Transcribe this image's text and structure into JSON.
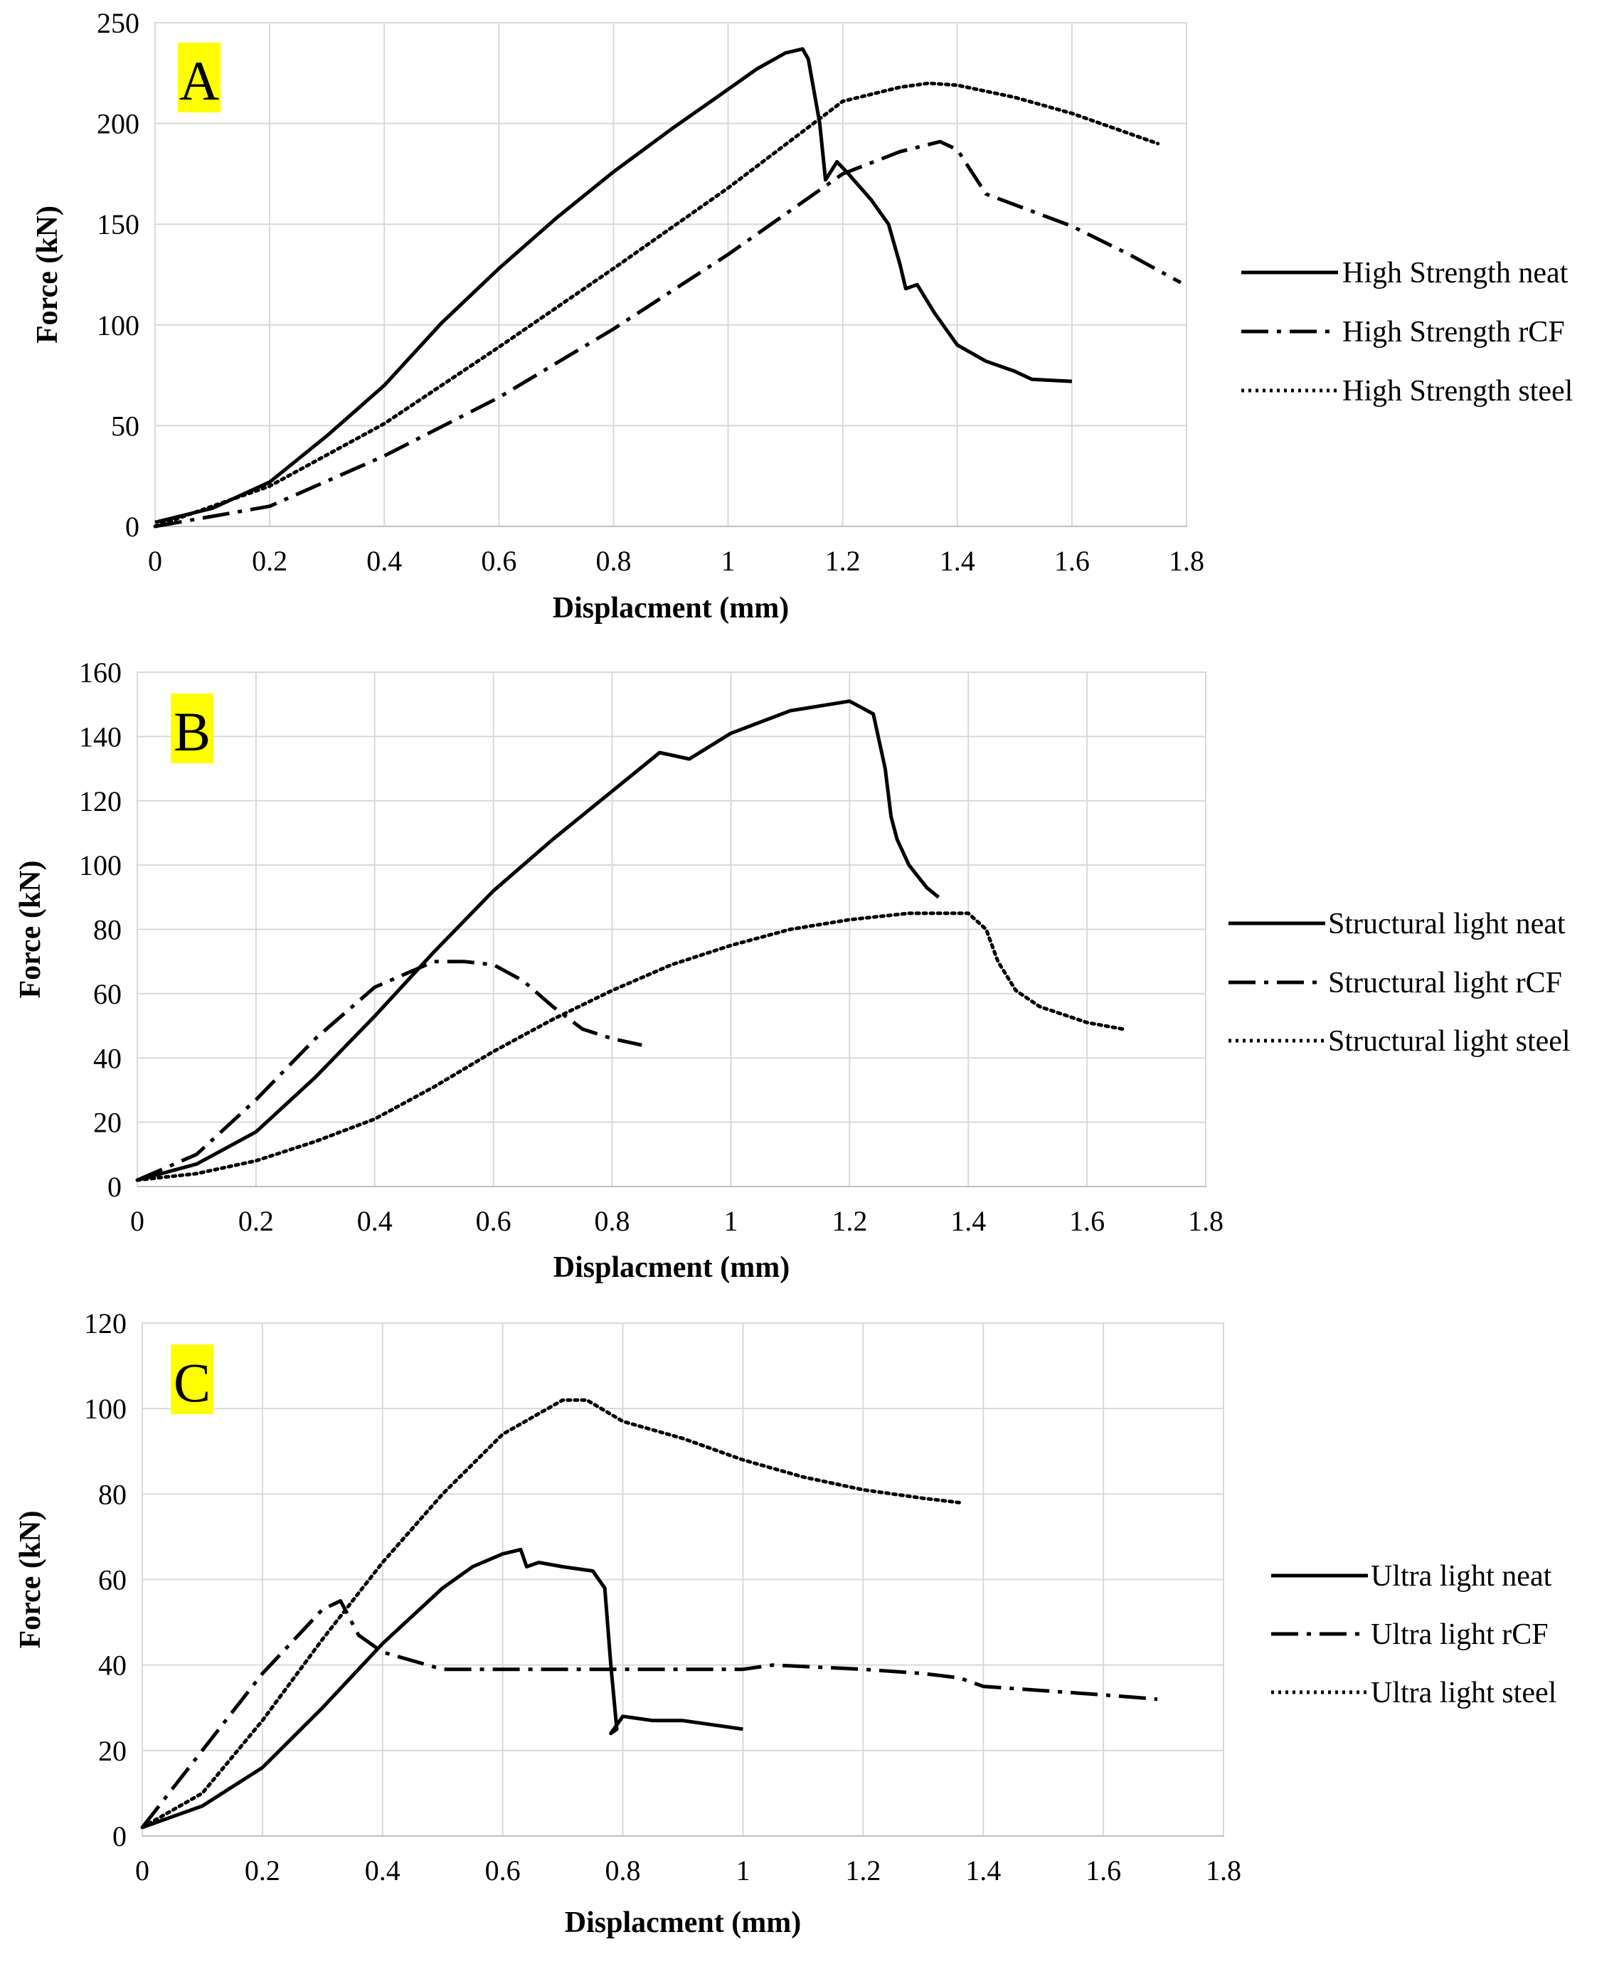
{
  "chart_data": [
    {
      "type": "line",
      "panel_label": "A",
      "panel_label_color": "#ffff00",
      "xlabel": "Displacment (mm)",
      "ylabel": "Force (kN)",
      "xlim": [
        0,
        1.8
      ],
      "ylim": [
        0,
        250
      ],
      "xticks": [
        "0",
        "0.2",
        "0.4",
        "0.6",
        "0.8",
        "1",
        "1.2",
        "1.4",
        "1.6",
        "1.8"
      ],
      "yticks": [
        "0",
        "50",
        "100",
        "150",
        "200",
        "250"
      ],
      "grid": true,
      "legend_position": "right",
      "series": [
        {
          "name": "High Strength neat",
          "style": "solid",
          "x": [
            0,
            0.1,
            0.2,
            0.3,
            0.4,
            0.5,
            0.6,
            0.7,
            0.8,
            0.9,
            1.0,
            1.05,
            1.1,
            1.13,
            1.14,
            1.16,
            1.17,
            1.19,
            1.21,
            1.25,
            1.28,
            1.3,
            1.31,
            1.33,
            1.36,
            1.4,
            1.45,
            1.5,
            1.53,
            1.6
          ],
          "y": [
            2,
            9,
            22,
            45,
            70,
            101,
            128,
            153,
            176,
            197,
            217,
            227,
            235,
            237,
            232,
            200,
            172,
            181,
            175,
            162,
            150,
            130,
            118,
            120,
            106,
            90,
            82,
            77,
            73,
            72
          ]
        },
        {
          "name": "High Strength rCF",
          "style": "dashdot",
          "x": [
            0,
            0.2,
            0.4,
            0.6,
            0.8,
            1.0,
            1.2,
            1.3,
            1.37,
            1.4,
            1.45,
            1.6,
            1.7,
            1.79
          ],
          "y": [
            0,
            10,
            35,
            64,
            98,
            135,
            175,
            186,
            191,
            187,
            165,
            149,
            135,
            121
          ]
        },
        {
          "name": "High Strength steel",
          "style": "dotted",
          "x": [
            0,
            0.2,
            0.4,
            0.6,
            0.8,
            1.0,
            1.2,
            1.3,
            1.35,
            1.4,
            1.5,
            1.6,
            1.75
          ],
          "y": [
            0,
            20,
            51,
            89,
            128,
            168,
            211,
            218,
            220,
            219,
            213,
            205,
            190
          ]
        }
      ]
    },
    {
      "type": "line",
      "panel_label": "B",
      "panel_label_color": "#ffff00",
      "xlabel": "Displacment (mm)",
      "ylabel": "Force (kN)",
      "xlim": [
        0,
        1.8
      ],
      "ylim": [
        0,
        160
      ],
      "xticks": [
        "0",
        "0.2",
        "0.4",
        "0.6",
        "0.8",
        "1",
        "1.2",
        "1.4",
        "1.6",
        "1.8"
      ],
      "yticks": [
        "0",
        "20",
        "40",
        "60",
        "80",
        "100",
        "120",
        "140",
        "160"
      ],
      "grid": true,
      "legend_position": "right",
      "series": [
        {
          "name": "Structural light neat",
          "style": "solid",
          "x": [
            0,
            0.1,
            0.2,
            0.3,
            0.4,
            0.5,
            0.6,
            0.7,
            0.8,
            0.88,
            0.93,
            1.0,
            1.1,
            1.2,
            1.24,
            1.26,
            1.27,
            1.28,
            1.3,
            1.33,
            1.35
          ],
          "y": [
            2,
            7,
            17,
            34,
            53,
            73,
            92,
            108,
            123,
            135,
            133,
            141,
            148,
            151,
            147,
            130,
            115,
            108,
            100,
            93,
            90
          ]
        },
        {
          "name": "Structural light rCF",
          "style": "dashdot",
          "x": [
            0,
            0.1,
            0.2,
            0.3,
            0.4,
            0.5,
            0.55,
            0.6,
            0.65,
            0.7,
            0.75,
            0.8,
            0.85
          ],
          "y": [
            2,
            10,
            27,
            46,
            62,
            70,
            70,
            69,
            64,
            56,
            49,
            46,
            44
          ]
        },
        {
          "name": "Structural light steel",
          "style": "dotted",
          "x": [
            0,
            0.1,
            0.2,
            0.3,
            0.4,
            0.5,
            0.6,
            0.7,
            0.8,
            0.9,
            1.0,
            1.1,
            1.2,
            1.3,
            1.4,
            1.43,
            1.45,
            1.48,
            1.52,
            1.6,
            1.66
          ],
          "y": [
            2,
            4,
            8,
            14,
            21,
            31,
            42,
            52,
            61,
            69,
            75,
            80,
            83,
            85,
            85,
            80,
            70,
            61,
            56,
            51,
            49
          ]
        }
      ]
    },
    {
      "type": "line",
      "panel_label": "C",
      "panel_label_color": "#ffff00",
      "xlabel": "Displacment (mm)",
      "ylabel": "Force (kN)",
      "xlim": [
        0,
        1.8
      ],
      "ylim": [
        0,
        120
      ],
      "xticks": [
        "0",
        "0.2",
        "0.4",
        "0.6",
        "0.8",
        "1",
        "1.2",
        "1.4",
        "1.6",
        "1.8"
      ],
      "yticks": [
        "0",
        "20",
        "40",
        "60",
        "80",
        "100",
        "120"
      ],
      "grid": true,
      "legend_position": "right",
      "series": [
        {
          "name": "Ultra light neat",
          "style": "solid",
          "x": [
            0,
            0.1,
            0.2,
            0.3,
            0.4,
            0.5,
            0.55,
            0.6,
            0.63,
            0.64,
            0.66,
            0.7,
            0.75,
            0.77,
            0.78,
            0.79,
            0.78,
            0.8,
            0.85,
            0.9,
            0.95,
            1.0
          ],
          "y": [
            2,
            7,
            16,
            30,
            45,
            58,
            63,
            66,
            67,
            63,
            64,
            63,
            62,
            58,
            40,
            25,
            24,
            28,
            27,
            27,
            26,
            25
          ]
        },
        {
          "name": "Ultra light rCF",
          "style": "dashdot",
          "x": [
            0,
            0.1,
            0.2,
            0.3,
            0.33,
            0.36,
            0.4,
            0.5,
            0.6,
            0.8,
            1.0,
            1.05,
            1.2,
            1.3,
            1.36,
            1.4,
            1.5,
            1.6,
            1.69
          ],
          "y": [
            2,
            20,
            38,
            53,
            55,
            47,
            43,
            39,
            39,
            39,
            39,
            40,
            39,
            38,
            37,
            35,
            34,
            33,
            32
          ]
        },
        {
          "name": "Ultra light steel",
          "style": "dotted",
          "x": [
            0,
            0.1,
            0.2,
            0.3,
            0.4,
            0.5,
            0.6,
            0.7,
            0.74,
            0.8,
            0.9,
            1.0,
            1.1,
            1.2,
            1.3,
            1.36
          ],
          "y": [
            2,
            10,
            27,
            46,
            64,
            80,
            94,
            102,
            102,
            97,
            93,
            88,
            84,
            81,
            79,
            78
          ]
        }
      ]
    }
  ]
}
